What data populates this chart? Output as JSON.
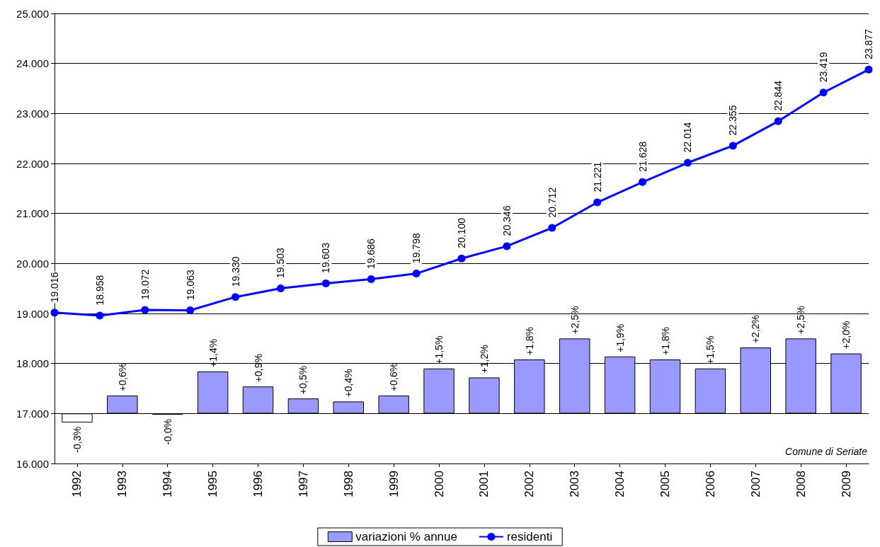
{
  "chart_data": {
    "type": "line",
    "x": [
      1992,
      1993,
      1994,
      1995,
      1996,
      1997,
      1998,
      1999,
      2000,
      2001,
      2002,
      2003,
      2004,
      2005,
      2006,
      2007,
      2008,
      2009
    ],
    "xlim": [
      1991.5,
      2009.5
    ],
    "xticks": [
      1992,
      1993,
      1994,
      1995,
      1996,
      1997,
      1998,
      1999,
      2000,
      2001,
      2002,
      2003,
      2004,
      2005,
      2006,
      2007,
      2008,
      2009
    ],
    "series": [
      {
        "name": "variazioni % annue",
        "type": "bar",
        "axis": "y2",
        "color": "#9999ff",
        "colors": [
          "#ffffff",
          "#9999ff",
          "#ffffff",
          "#9999ff",
          "#9999ff",
          "#9999ff",
          "#9999ff",
          "#9999ff",
          "#9999ff",
          "#9999ff",
          "#9999ff",
          "#9999ff",
          "#9999ff",
          "#9999ff",
          "#9999ff",
          "#9999ff",
          "#9999ff",
          "#9999ff"
        ],
        "values": [
          -0.3,
          0.6,
          -0.04,
          1.4,
          0.9,
          0.5,
          0.4,
          0.6,
          1.5,
          1.2,
          1.8,
          2.5,
          1.9,
          1.8,
          1.5,
          2.2,
          2.5,
          2.0
        ],
        "value_labels": [
          "-0,3%",
          "+0,6%",
          "-0,0%",
          "+1,4%",
          "+0,9%",
          "+0,5%",
          "+0,4%",
          "+0,6%",
          "+1,5%",
          "+1,2%",
          "+1,8%",
          "+2,5%",
          "+1,9%",
          "+1,8%",
          "+1,5%",
          "+2,2%",
          "+2,5%",
          "+2,0%"
        ]
      },
      {
        "name": "residenti",
        "color": "#0000ff",
        "x": [
          1991.5,
          1992.5,
          1993.5,
          1994.5,
          1995.5,
          1996.5,
          1997.5,
          1998.5,
          1999.5,
          2000.5,
          2001.5,
          2002.5,
          2003.5,
          2004.5,
          2005.5,
          2006.5,
          2007.5,
          2008.5,
          2009.5
        ],
        "values": [
          19016,
          18958,
          19072,
          19063,
          19330,
          19503,
          19603,
          19686,
          19798,
          20100,
          20346,
          20712,
          21221,
          21628,
          22014,
          22355,
          22844,
          23419,
          23877
        ],
        "value_labels": [
          "19.016",
          "18.958",
          "19.072",
          "19.063",
          "19.330",
          "19.503",
          "19.603",
          "19.686",
          "19.798",
          "20.100",
          "20.346",
          "20.712",
          "21.221",
          "21.628",
          "22.014",
          "22.355",
          "22.844",
          "23.419",
          "23.877"
        ]
      }
    ],
    "ylim": [
      16000,
      25000
    ],
    "yticks": [
      {
        "value": 16000,
        "label": "16.000"
      },
      {
        "value": 17000,
        "label": "17.000"
      },
      {
        "value": 18000,
        "label": "18.000"
      },
      {
        "value": 19000,
        "label": "19.000"
      },
      {
        "value": 20000,
        "label": "20.000"
      },
      {
        "value": 21000,
        "label": "21.000"
      },
      {
        "value": 22000,
        "label": "22.000"
      },
      {
        "value": 23000,
        "label": "23.000"
      },
      {
        "value": 24000,
        "label": "24.000"
      },
      {
        "value": 25000,
        "label": "25.000"
      }
    ],
    "grid": "y",
    "legend": "bottom",
    "marker": "circle",
    "line_style": "solid",
    "annotations": [
      "Comune di Seriate"
    ]
  }
}
